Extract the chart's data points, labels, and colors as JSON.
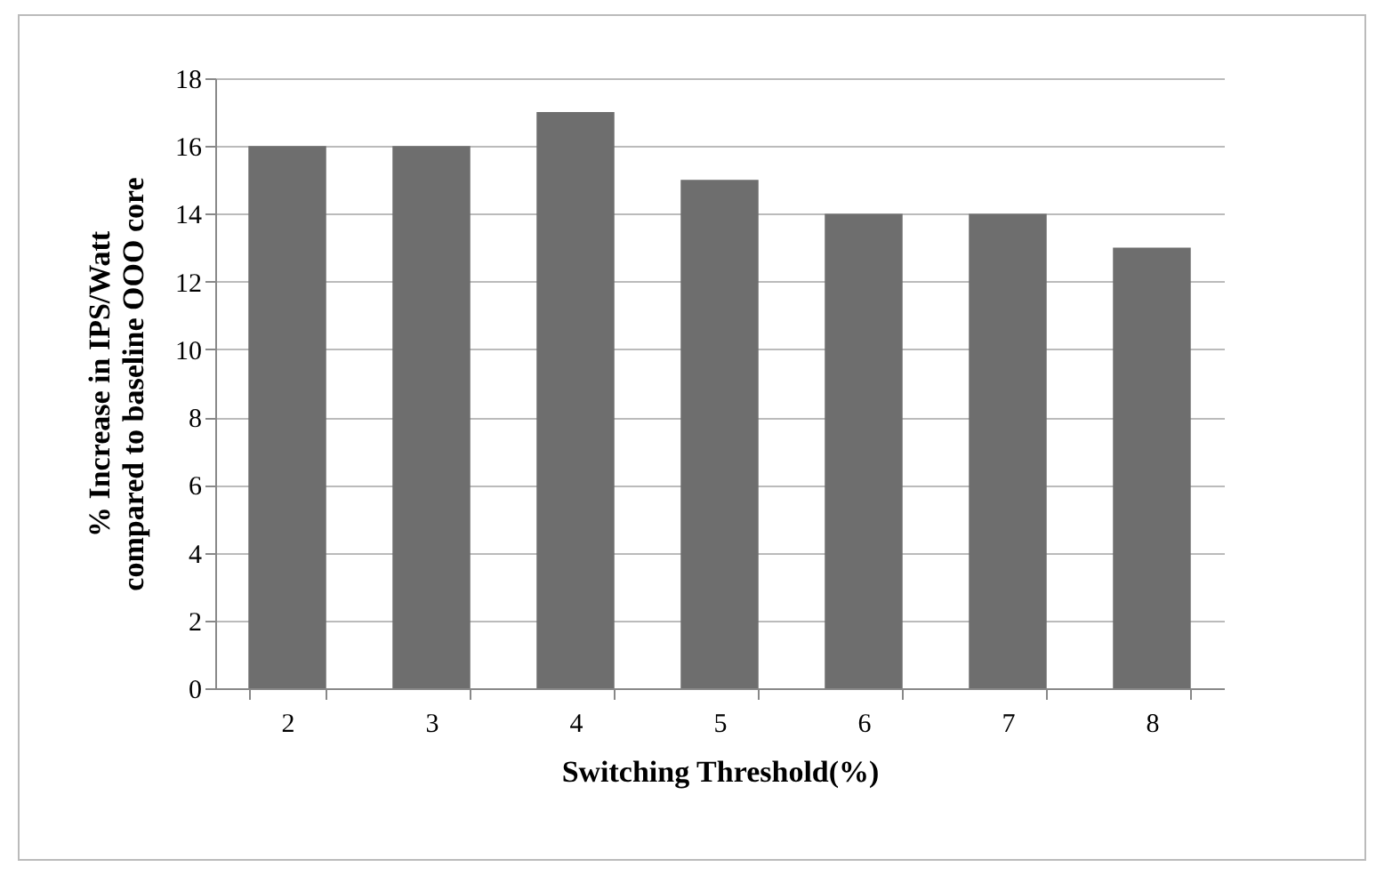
{
  "chart_data": {
    "type": "bar",
    "xlabel": "Switching Threshold(%)",
    "ylabel": "% Increase in IPS/Watt\ncompared to baseline OOO core",
    "categories": [
      "2",
      "3",
      "4",
      "5",
      "6",
      "7",
      "8"
    ],
    "values": [
      16,
      16,
      17,
      15,
      14,
      14,
      13
    ],
    "color": "#6e6e6e",
    "ylim": [
      0,
      18
    ],
    "yticks": [
      0,
      2,
      4,
      6,
      8,
      10,
      12,
      14,
      16,
      18
    ],
    "grid": "y"
  }
}
